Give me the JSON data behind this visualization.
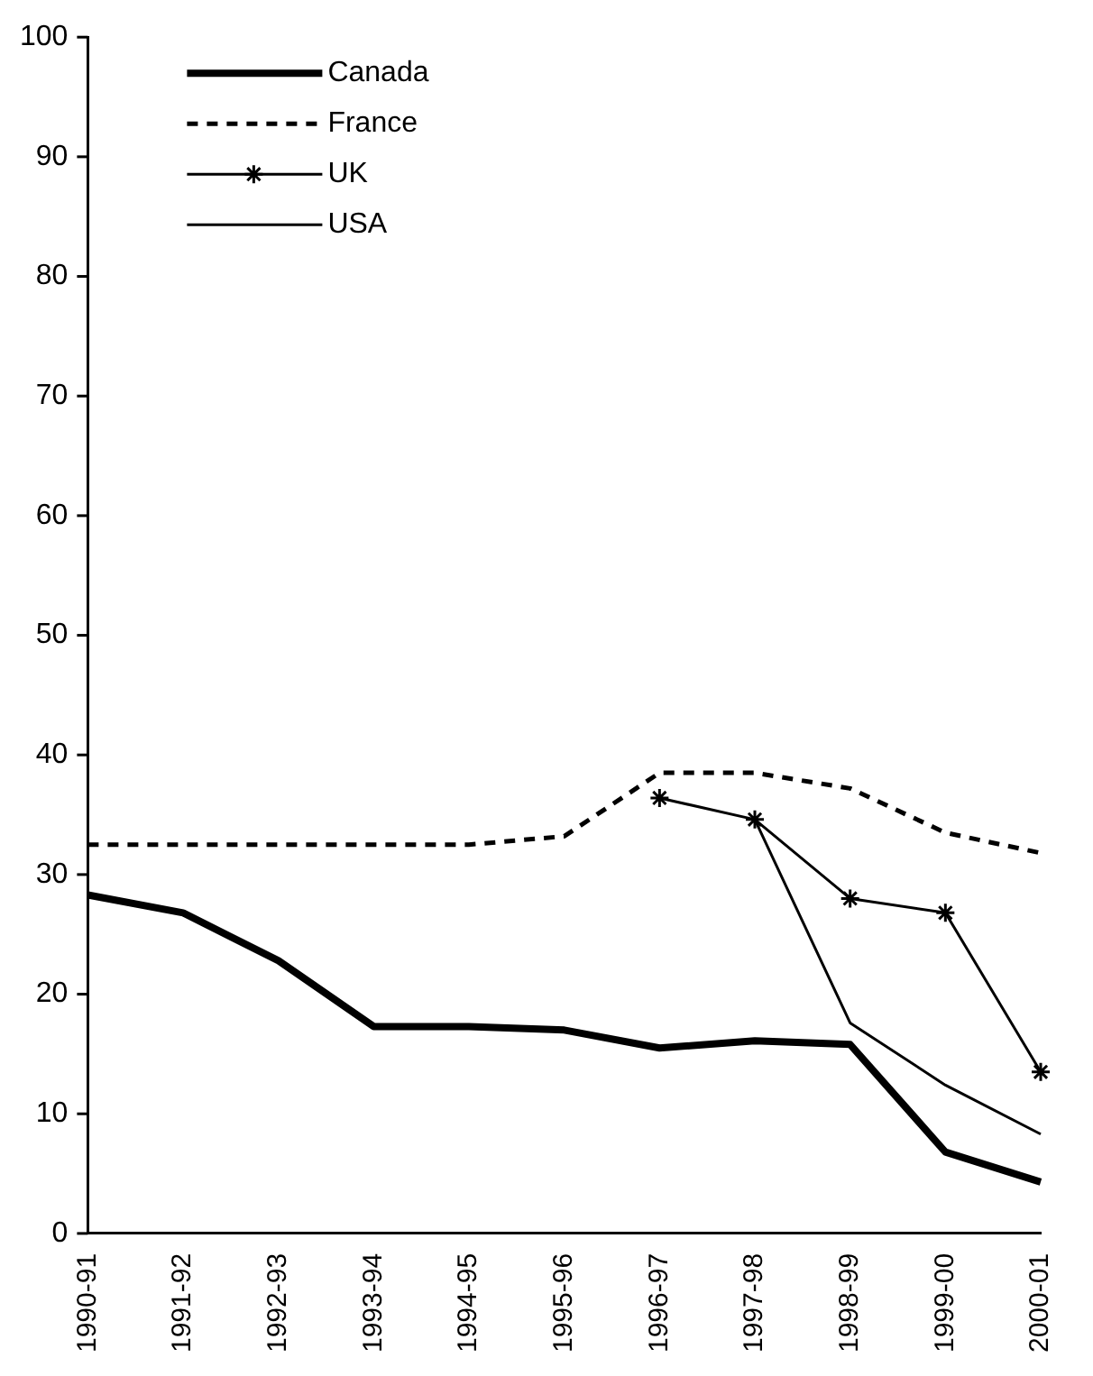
{
  "chart_data": {
    "type": "line",
    "categories": [
      "1990-91",
      "1991-92",
      "1992-93",
      "1993-94",
      "1994-95",
      "1995-96",
      "1996-97",
      "1997-98",
      "1998-99",
      "1999-00",
      "2000-01"
    ],
    "series": [
      {
        "name": "Canada",
        "color": "#000000",
        "line_style": "solid",
        "marker": "none",
        "values": [
          28.3,
          26.8,
          22.8,
          17.3,
          17.3,
          17.0,
          15.5,
          16.1,
          15.8,
          6.8,
          4.3
        ]
      },
      {
        "name": "France",
        "color": "#000000",
        "line_style": "dashed",
        "marker": "none",
        "values": [
          32.5,
          32.5,
          32.5,
          32.5,
          32.5,
          33.2,
          38.5,
          38.5,
          37.2,
          33.5,
          31.8
        ]
      },
      {
        "name": "UK",
        "color": "#000000",
        "line_style": "solid",
        "marker": "cross",
        "values": [
          null,
          null,
          null,
          null,
          null,
          null,
          36.4,
          34.6,
          28.0,
          26.8,
          13.5
        ]
      },
      {
        "name": "USA",
        "color": "#000000",
        "line_style": "solid",
        "marker": "none",
        "values": [
          null,
          null,
          null,
          null,
          null,
          null,
          null,
          34.6,
          17.6,
          12.4,
          8.3
        ]
      }
    ],
    "ylim": [
      0,
      100
    ],
    "yticks": [
      0,
      10,
      20,
      30,
      40,
      50,
      60,
      70,
      80,
      90,
      100
    ],
    "grid": false,
    "legend": "top left"
  }
}
